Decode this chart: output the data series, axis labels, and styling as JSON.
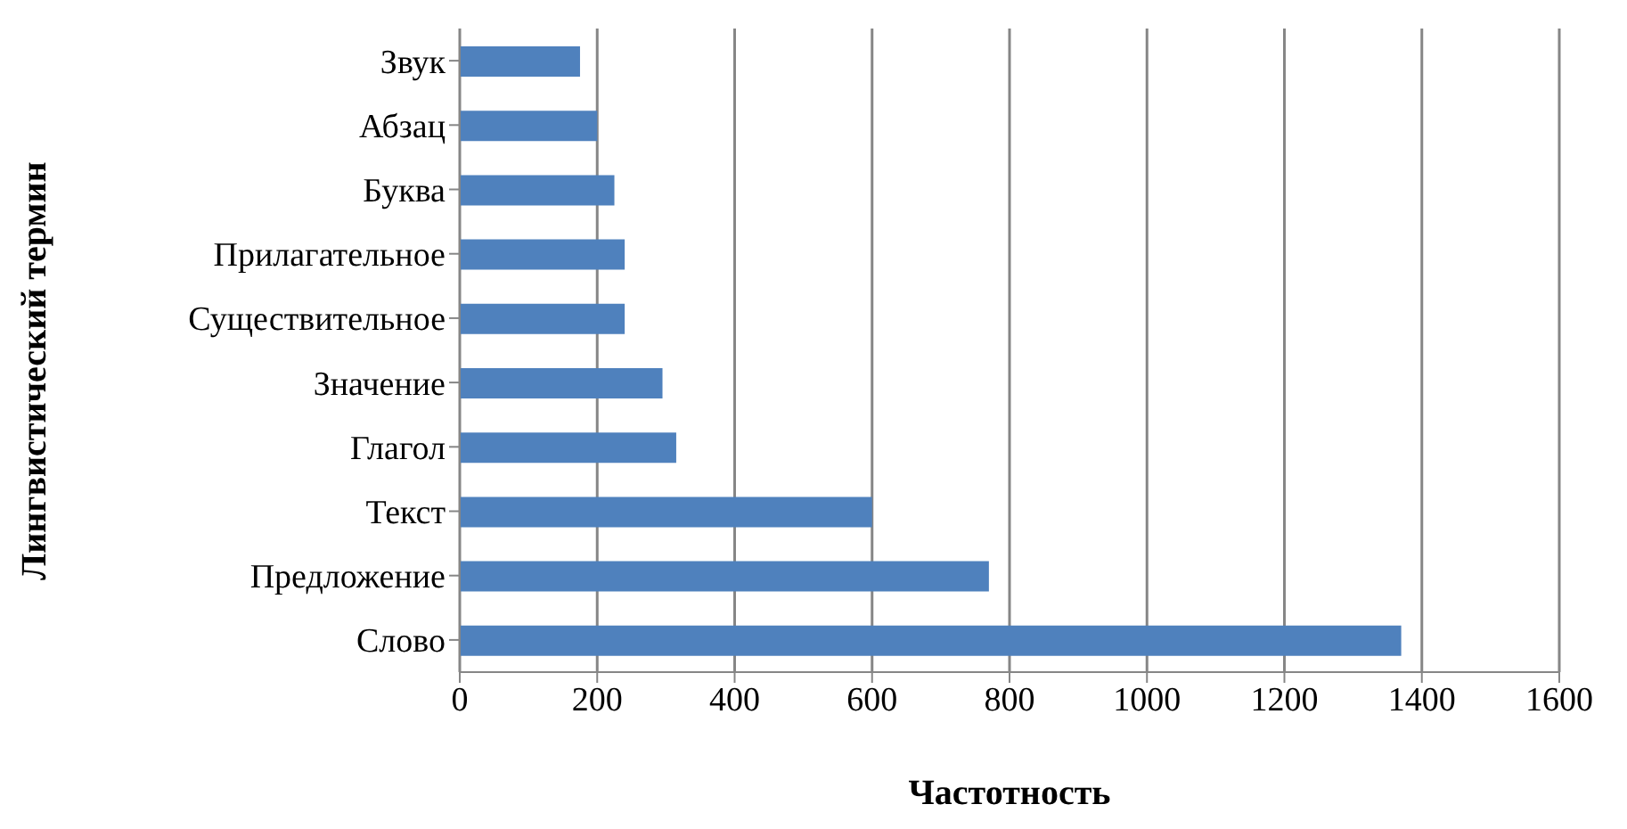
{
  "chart_data": {
    "type": "bar",
    "orientation": "horizontal",
    "xlabel": "Частотность",
    "ylabel": "Лингвистический термин",
    "categories": [
      "Звук",
      "Абзац",
      "Буква",
      "Прилагательное",
      "Существительное",
      "Значение",
      "Глагол",
      "Текст",
      "Предложение",
      "Слово"
    ],
    "values": [
      175,
      200,
      225,
      240,
      240,
      295,
      315,
      600,
      770,
      1370
    ],
    "color": "#4f81bd",
    "xlim": [
      0,
      1600
    ],
    "xticks": [
      0,
      200,
      400,
      600,
      800,
      1000,
      1200,
      1400,
      1600
    ],
    "grid": "x",
    "legend": false
  }
}
